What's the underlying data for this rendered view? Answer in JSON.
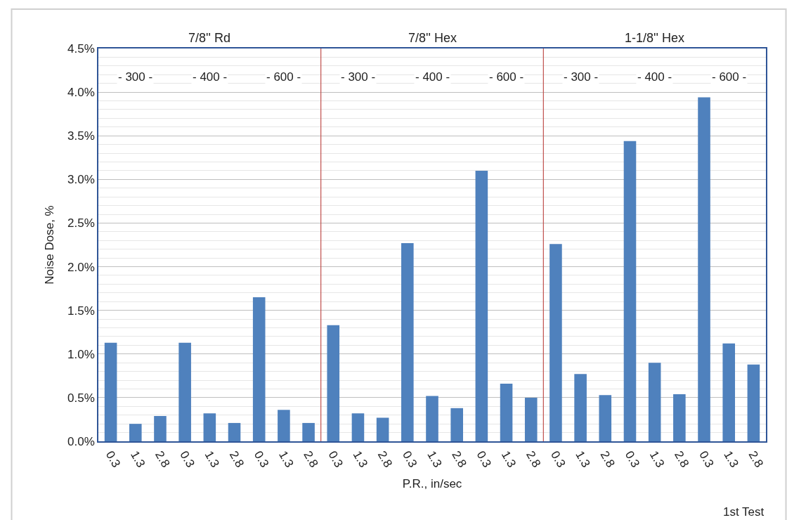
{
  "chart_data": {
    "type": "bar",
    "xlabel": "P.R., in/sec",
    "ylabel": "Noise Dose, %",
    "categories": [
      "0.3",
      "1.3",
      "2.8",
      "0.3",
      "1.3",
      "2.8",
      "0.3",
      "1.3",
      "2.8",
      "0.3",
      "1.3",
      "2.8",
      "0.3",
      "1.3",
      "2.8",
      "0.3",
      "1.3",
      "2.8",
      "0.3",
      "1.3",
      "2.8",
      "0.3",
      "1.3",
      "2.8",
      "0.3",
      "1.3",
      "2.8"
    ],
    "values": [
      1.13,
      0.2,
      0.29,
      1.13,
      0.32,
      0.21,
      1.65,
      0.36,
      0.21,
      1.33,
      0.32,
      0.27,
      2.27,
      0.52,
      0.38,
      3.1,
      0.66,
      0.5,
      2.26,
      0.77,
      0.53,
      3.44,
      0.9,
      0.54,
      3.94,
      1.12,
      0.88
    ],
    "color": "#4f81bd",
    "ylim": [
      0,
      4.5
    ],
    "yticks": [
      {
        "value": 0,
        "label": "0.0%"
      },
      {
        "value": 0.5,
        "label": "0.5%"
      },
      {
        "value": 1,
        "label": "1.0%"
      },
      {
        "value": 1.5,
        "label": "1.5%"
      },
      {
        "value": 2,
        "label": "2.0%"
      },
      {
        "value": 2.5,
        "label": "2.5%"
      },
      {
        "value": 3,
        "label": "3.0%"
      },
      {
        "value": 3.5,
        "label": "3.5%"
      },
      {
        "value": 4,
        "label": "4.0%"
      },
      {
        "value": 4.5,
        "label": "4.5%"
      }
    ],
    "grid": "y",
    "annotations": [
      "7/8'' Rd",
      "7/8'' Hex",
      "1-1/8'' Hex",
      "- 300 -",
      "- 400 -",
      "- 600 -",
      "- 300 -",
      "- 400 -",
      "- 600 -",
      "- 300 -",
      "- 400 -",
      "- 600 -",
      "1st Test"
    ]
  }
}
